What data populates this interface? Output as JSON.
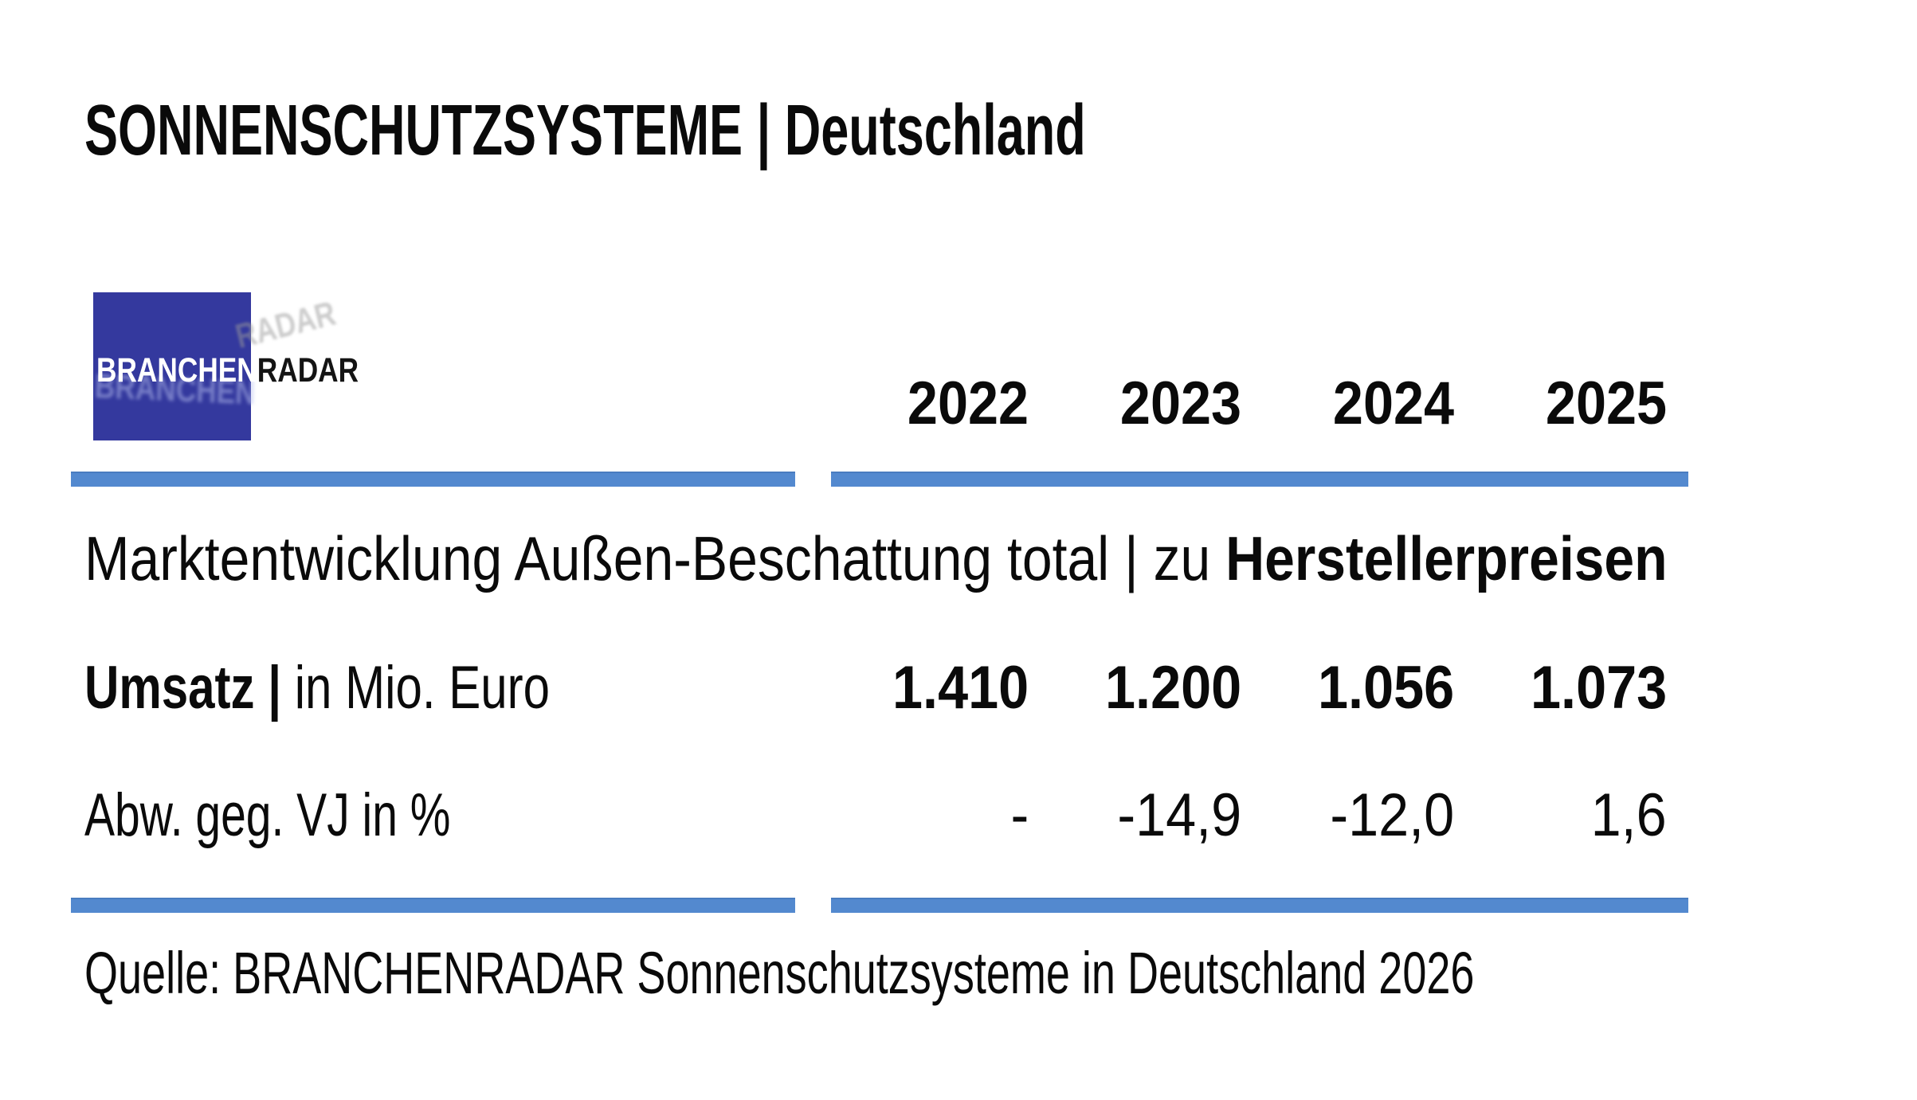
{
  "header": {
    "title": "SONNENSCHUTZSYSTEME | Deutschland"
  },
  "logo": {
    "text_primary": "BRANCHEN",
    "text_secondary": "RADAR",
    "square_color": "#34399e"
  },
  "table": {
    "accent_color": "#5389cf",
    "years": [
      "2022",
      "2023",
      "2024",
      "2025"
    ],
    "section_title": {
      "regular": "Marktentwicklung Außen-Beschattung total | zu ",
      "bold": "Herstellerpreisen"
    },
    "rows": [
      {
        "label_bold": "Umsatz | ",
        "label_regular": "in Mio. Euro",
        "values": [
          "1.410",
          "1.200",
          "1.056",
          "1.073"
        ]
      },
      {
        "label_bold": "",
        "label_regular": "Abw. geg. VJ in %",
        "values": [
          "-",
          "-14,9",
          "-12,0",
          "1,6"
        ]
      }
    ]
  },
  "footer": {
    "source": "Quelle: BRANCHENRADAR Sonnenschutzsysteme in Deutschland 2026"
  },
  "chart_data": {
    "type": "table",
    "title": "SONNENSCHUTZSYSTEME | Deutschland",
    "subtitle": "Marktentwicklung Außen-Beschattung total | zu Herstellerpreisen",
    "categories": [
      "2022",
      "2023",
      "2024",
      "2025"
    ],
    "series": [
      {
        "name": "Umsatz | in Mio. Euro",
        "values": [
          1410,
          1200,
          1056,
          1073
        ],
        "display": [
          "1.410",
          "1.200",
          "1.056",
          "1.073"
        ]
      },
      {
        "name": "Abw. geg. VJ in %",
        "values": [
          null,
          -14.9,
          -12.0,
          1.6
        ],
        "display": [
          "-",
          "-14,9",
          "-12,0",
          "1,6"
        ]
      }
    ],
    "source": "Quelle: BRANCHENRADAR Sonnenschutzsysteme in Deutschland 2026"
  }
}
